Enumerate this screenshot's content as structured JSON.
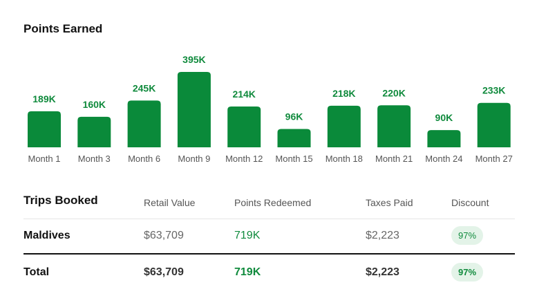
{
  "points_section": {
    "title": "Points Earned"
  },
  "chart_data": {
    "type": "bar",
    "categories": [
      "Month 1",
      "Month 3",
      "Month 6",
      "Month 9",
      "Month 12",
      "Month 15",
      "Month 18",
      "Month 21",
      "Month 24",
      "Month 27"
    ],
    "values": [
      189,
      160,
      245,
      395,
      214,
      96,
      218,
      220,
      90,
      233
    ],
    "value_labels": [
      "189K",
      "160K",
      "245K",
      "395K",
      "214K",
      "96K",
      "218K",
      "220K",
      "90K",
      "233K"
    ],
    "title": "Points Earned",
    "xlabel": "",
    "ylabel": "",
    "ylim": [
      0,
      395
    ],
    "grid": false,
    "color": "#0a8a3a"
  },
  "trips": {
    "headers": {
      "title": "Trips Booked",
      "retail": "Retail Value",
      "points": "Points Redeemed",
      "taxes": "Taxes Paid",
      "discount": "Discount"
    },
    "rows": [
      {
        "destination": "Maldives",
        "retail": "$63,709",
        "points": "719K",
        "taxes": "$2,223",
        "discount": "97%"
      }
    ],
    "total": {
      "label": "Total",
      "retail": "$63,709",
      "points": "719K",
      "taxes": "$2,223",
      "discount": "97%"
    }
  },
  "colors": {
    "accent": "#0a8a3a",
    "badge_bg": "#e3f3e8",
    "muted": "#666666"
  }
}
